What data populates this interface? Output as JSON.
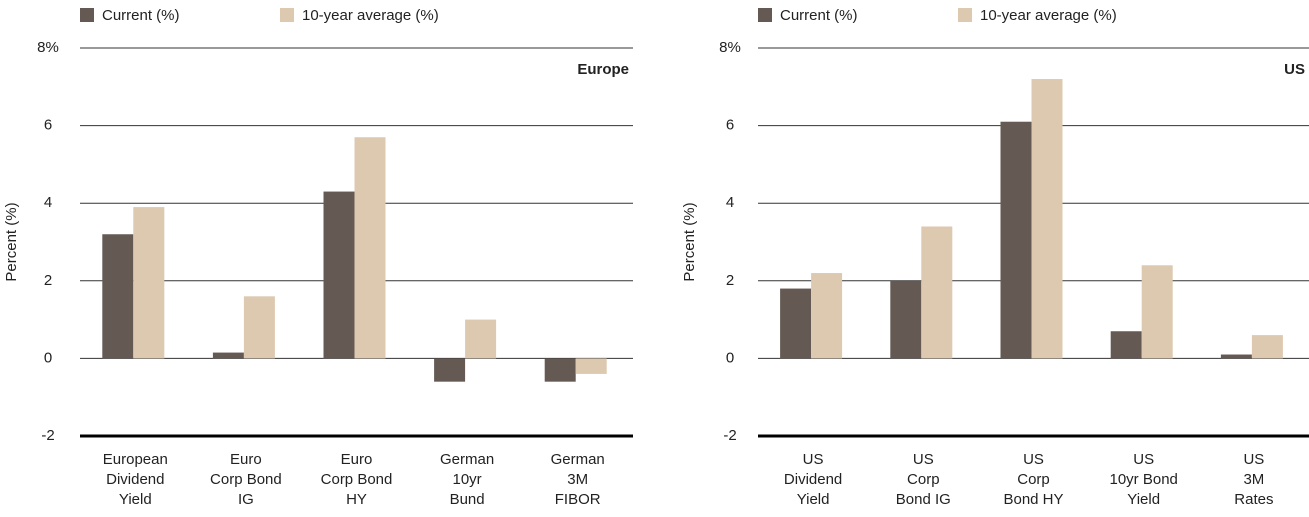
{
  "chart_data": [
    {
      "type": "bar",
      "label": "Europe",
      "label_color": "#b5494a",
      "y_label": "Percent (%)",
      "categories": [
        [
          "European",
          "Dividend",
          "Yield"
        ],
        [
          "Euro",
          "Corp Bond",
          "IG"
        ],
        [
          "Euro",
          "Corp Bond",
          "HY"
        ],
        [
          "German",
          "10yr",
          "Bund"
        ],
        [
          "German",
          "3M",
          "FIBOR"
        ]
      ],
      "series": [
        {
          "name": "Current (%)",
          "color": "#655a53",
          "values": [
            3.2,
            0.15,
            4.3,
            -0.6,
            -0.6
          ]
        },
        {
          "name": "10-year average (%)",
          "color": "#ddc9b0",
          "values": [
            3.9,
            1.6,
            5.7,
            1.0,
            -0.4
          ]
        }
      ],
      "ylim": [
        -2,
        8
      ],
      "yticks": [
        -2,
        0,
        2,
        4,
        6,
        {
          "value": 8,
          "label": "8%"
        }
      ],
      "grid": true
    },
    {
      "type": "bar",
      "label": "US",
      "label_color": "#b5494a",
      "y_label": "Percent (%)",
      "categories": [
        [
          "US",
          "Dividend",
          "Yield"
        ],
        [
          "US",
          "Corp",
          "Bond IG"
        ],
        [
          "US",
          "Corp",
          "Bond HY"
        ],
        [
          "US",
          "10yr Bond",
          "Yield"
        ],
        [
          "US",
          "3M",
          "Rates"
        ]
      ],
      "series": [
        {
          "name": "Current (%)",
          "color": "#655a53",
          "values": [
            1.8,
            2.0,
            6.1,
            0.7,
            0.1
          ]
        },
        {
          "name": "10-year average (%)",
          "color": "#ddc9b0",
          "values": [
            2.2,
            3.4,
            7.2,
            2.4,
            0.6
          ]
        }
      ],
      "ylim": [
        -2,
        8
      ],
      "yticks": [
        -2,
        0,
        2,
        4,
        6,
        {
          "value": 8,
          "label": "8%"
        }
      ],
      "grid": true
    }
  ]
}
